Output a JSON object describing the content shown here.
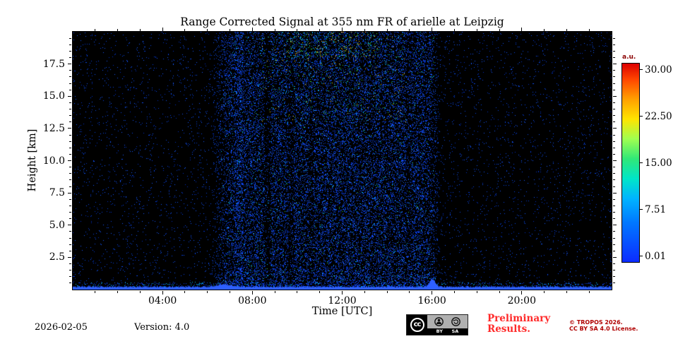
{
  "chart_data": {
    "type": "heatmap",
    "title": "Range Corrected Signal at 355 nm FR of arielle at Leipzig",
    "xlabel": "Time [UTC]",
    "ylabel": "Height [km]",
    "xlim_hours": [
      0,
      24
    ],
    "ylim_km": [
      0,
      20
    ],
    "grid": false,
    "xticks": [
      {
        "hour": 4,
        "label": "04:00"
      },
      {
        "hour": 8,
        "label": "08:00"
      },
      {
        "hour": 12,
        "label": "12:00"
      },
      {
        "hour": 16,
        "label": "16:00"
      },
      {
        "hour": 20,
        "label": "20:00"
      }
    ],
    "yticks": [
      {
        "km": 2.5,
        "label": "2.5"
      },
      {
        "km": 5.0,
        "label": "5.0"
      },
      {
        "km": 7.5,
        "label": "7.5"
      },
      {
        "km": 10.0,
        "label": "10.0"
      },
      {
        "km": 12.5,
        "label": "12.5"
      },
      {
        "km": 15.0,
        "label": "15.0"
      },
      {
        "km": 17.5,
        "label": "17.5"
      }
    ],
    "colorbar": {
      "unit": "a.u.",
      "range": [
        0.01,
        30.0
      ],
      "ticks": [
        {
          "value": 30.0,
          "label": "30.00"
        },
        {
          "value": 22.5,
          "label": "22.50"
        },
        {
          "value": 15.0,
          "label": "15.00"
        },
        {
          "value": 7.51,
          "label": "7.51"
        },
        {
          "value": 0.01,
          "label": "0.01"
        }
      ],
      "colormap": "jet",
      "gradient": {
        "colors": [
          "#dc0000",
          "#ff4600",
          "#ffa000",
          "#ffe400",
          "#a0ff50",
          "#30e878",
          "#00e6c8",
          "#00b4ff",
          "#0078ff",
          "#0c2cff"
        ],
        "positions": [
          0,
          8,
          18,
          28,
          38,
          48,
          58,
          68,
          80,
          100
        ]
      }
    },
    "content": {
      "background": "#000000",
      "daytime_window_hours": [
        6.3,
        16.3
      ],
      "night_speckle_density": 0.035,
      "day_speckle_density": 0.33,
      "surface_layer_top_km": 0.3,
      "surface_bump_hour": 16.0,
      "surface_bump_top_km": 0.9,
      "palette": {
        "night_blues": [
          "#0030c8",
          "#0a46e6",
          "#1458ff"
        ],
        "day_blues": [
          "#0a3cf0",
          "#1450ff",
          "#0032d2",
          "#2064ff"
        ],
        "cyan": "#00c0ff",
        "green": "#38d54a",
        "yellow": "#ffd21e",
        "orange": "#ff9000",
        "surface": "#2e5fff"
      },
      "description": "Sparse blue noise speckle at night; dense blue daylight background speckle between ~06:20 and ~16:20 with occasional cyan/green/yellow points near 18-20 km around midday; bright near-surface blue layer below ~0.3 km across the whole day with a plume up to ~0.9 km near 16:00."
    }
  },
  "footer": {
    "date": "2026-02-05",
    "version": "Version: 4.0",
    "preliminary_line1": "Preliminary",
    "preliminary_line2": "Results.",
    "copyright_line1": "© TROPOS 2026.",
    "copyright_line2": "CC BY SA 4.0 License.",
    "license_badge": {
      "cc": "cc",
      "by": "BY",
      "sa": "SA"
    }
  },
  "colors": {
    "preliminary_red": "#ff2a2a",
    "copyright_red": "#b00000",
    "unit_label_red": "#8b0000",
    "frame_black": "#000000"
  }
}
